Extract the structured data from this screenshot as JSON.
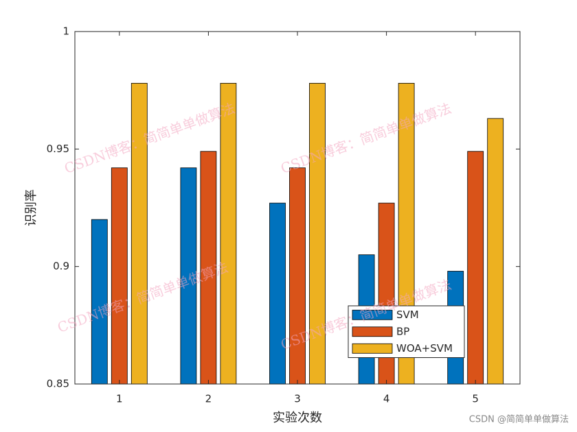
{
  "chart_data": {
    "type": "bar",
    "xlabel": "实验次数",
    "ylabel": "识别率",
    "categories": [
      "1",
      "2",
      "3",
      "4",
      "5"
    ],
    "series": [
      {
        "name": "SVM",
        "color": "#0072BD",
        "values": [
          0.92,
          0.942,
          0.927,
          0.905,
          0.898
        ]
      },
      {
        "name": "BP",
        "color": "#D95319",
        "values": [
          0.942,
          0.949,
          0.942,
          0.927,
          0.949
        ]
      },
      {
        "name": "WOA+SVM",
        "color": "#EDB120",
        "values": [
          0.978,
          0.978,
          0.978,
          0.978,
          0.963
        ]
      }
    ],
    "ylim": [
      0.85,
      1
    ],
    "yticks": [
      0.85,
      0.9,
      0.95,
      1
    ],
    "legend": "southeast",
    "watermark": "CSDN博客：简简单单做算法",
    "footer": "CSDN @简简单单做算法"
  }
}
